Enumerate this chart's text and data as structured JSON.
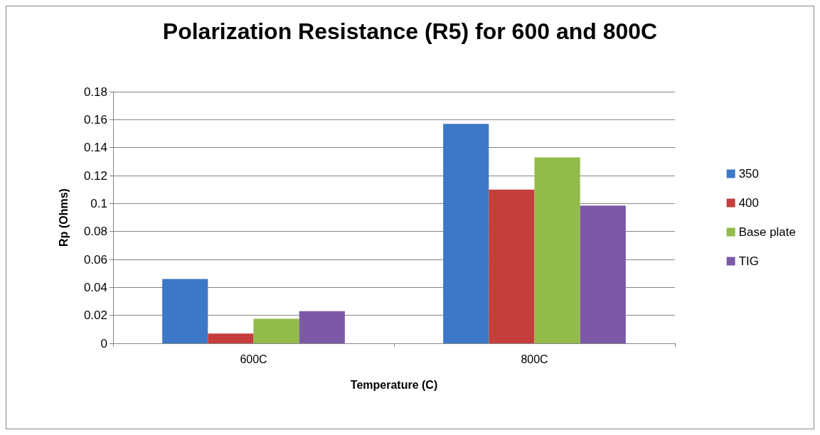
{
  "chart_data": {
    "type": "bar",
    "title": "Polarization Resistance (R5) for 600 and 800C",
    "xlabel": "Temperature (C)",
    "ylabel": "Rp (Ohms)",
    "categories": [
      "600C",
      "800C"
    ],
    "series": [
      {
        "name": "350",
        "color": "#3d78c6",
        "values": [
          0.046,
          0.157
        ]
      },
      {
        "name": "400",
        "color": "#c43e3b",
        "values": [
          0.007,
          0.11
        ]
      },
      {
        "name": "Base plate",
        "color": "#92bb4a",
        "values": [
          0.0175,
          0.133
        ]
      },
      {
        "name": "TIG",
        "color": "#7c59a6",
        "values": [
          0.023,
          0.0985
        ]
      }
    ],
    "ylim": [
      0,
      0.18
    ],
    "yticks": [
      0,
      0.02,
      0.04,
      0.06,
      0.08,
      0.1,
      0.12,
      0.14,
      0.16,
      0.18
    ],
    "grid": "y",
    "legend": "right"
  }
}
